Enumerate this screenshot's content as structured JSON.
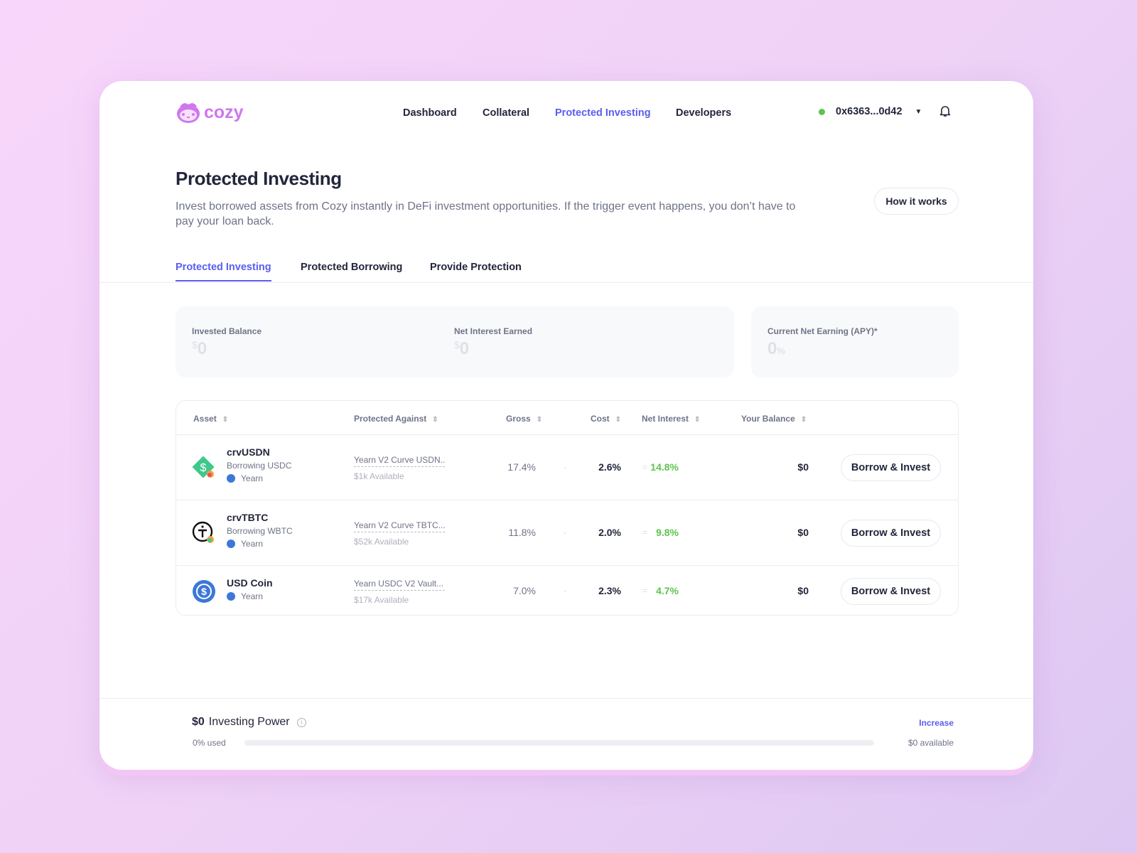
{
  "brand": {
    "name": "cozy",
    "color": "#cf77ef"
  },
  "nav": {
    "items": [
      "Dashboard",
      "Collateral",
      "Protected Investing",
      "Developers"
    ],
    "active": "Protected Investing"
  },
  "wallet": {
    "address": "0x6363...0d42",
    "status_color": "#5dc44e"
  },
  "page": {
    "title": "Protected Investing",
    "description": "Invest borrowed assets from Cozy instantly in DeFi investment opportunities. If the trigger event happens, you don’t have to pay your loan back.",
    "how_button": "How it works"
  },
  "tabs": [
    "Protected Investing",
    "Protected Borrowing",
    "Provide Protection"
  ],
  "stats": {
    "invested_label": "Invested Balance",
    "invested_currency": "$",
    "invested_value": "0",
    "interest_label": "Net Interest Earned",
    "interest_currency": "$",
    "interest_value": "0",
    "apy_label": "Current Net Earning (APY)*",
    "apy_value": "0",
    "apy_unit": "%"
  },
  "table": {
    "headers": [
      "Asset",
      "Protected Against",
      "Gross",
      "Cost",
      "Net Interest",
      "Your Balance"
    ],
    "rows": [
      {
        "asset": "crvUSDN",
        "borrowing": "Borrowing USDC",
        "platform": "Yearn",
        "protected": "Yearn V2 Curve USDN...",
        "available": "$1k Available",
        "gross": "17.4%",
        "minus": "-",
        "cost": "2.6%",
        "equals": "=",
        "net": "14.8%",
        "balance": "$0",
        "action": "Borrow & Invest",
        "icon": "crvusdn-icon"
      },
      {
        "asset": "crvTBTC",
        "borrowing": "Borrowing WBTC",
        "platform": "Yearn",
        "protected": "Yearn V2 Curve TBTC...",
        "available": "$52k Available",
        "gross": "11.8%",
        "minus": "-",
        "cost": "2.0%",
        "equals": "=",
        "net": "9.8%",
        "balance": "$0",
        "action": "Borrow & Invest",
        "icon": "crvtbtc-icon"
      },
      {
        "asset": "USD Coin",
        "platform": "Yearn",
        "protected": "Yearn USDC V2 Vault...",
        "available": "$17k Available",
        "gross": "7.0%",
        "minus": "-",
        "cost": "2.3%",
        "equals": "=",
        "net": "4.7%",
        "balance": "$0",
        "action": "Borrow & Invest",
        "icon": "usdc-icon"
      }
    ]
  },
  "footer": {
    "power_value": "$0",
    "power_label": "Investing Power",
    "increase": "Increase",
    "used": "0% used",
    "used_fraction": 0,
    "available": "$0 available"
  },
  "colors": {
    "accent": "#5b5cf0",
    "positive": "#5dc44e"
  }
}
